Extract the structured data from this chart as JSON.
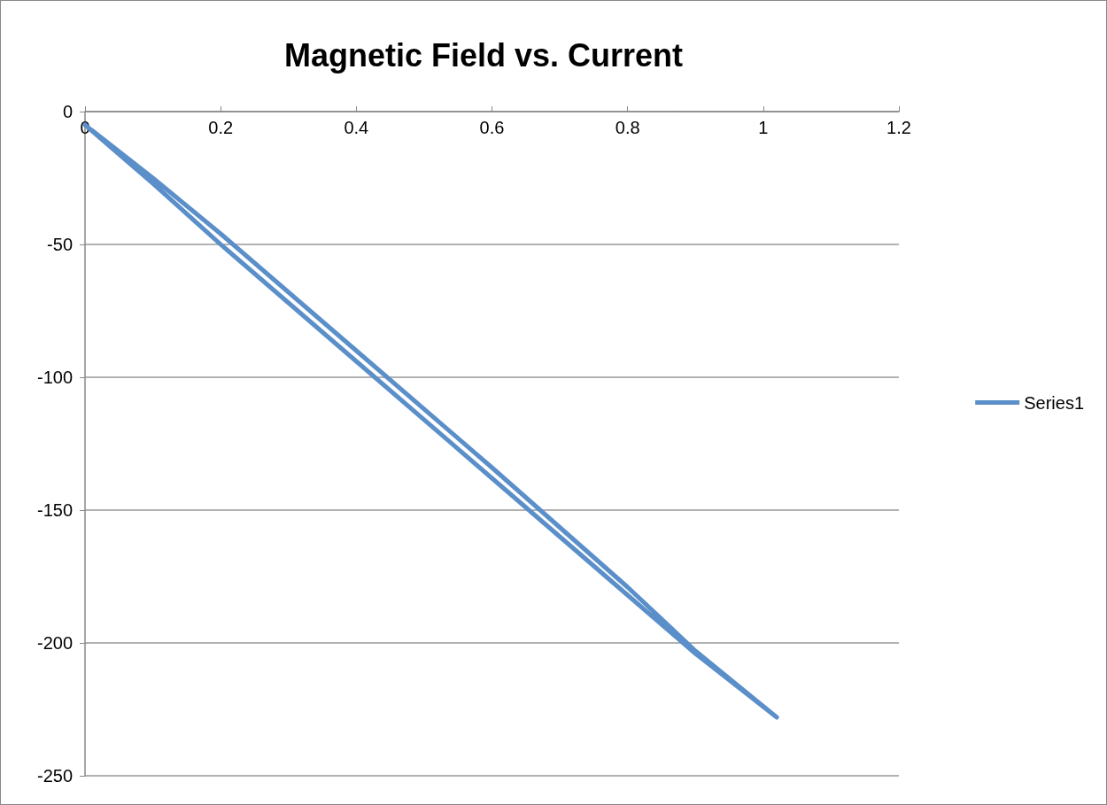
{
  "chart_data": {
    "type": "line",
    "title": "Magnetic Field vs. Current",
    "series": [
      {
        "name": "Series1",
        "color": "#5b8fc9",
        "x": [
          0,
          0.1,
          0.2,
          0.4,
          0.6,
          0.8,
          0.9,
          1.02,
          0.9,
          0.8,
          0.6,
          0.4,
          0.2,
          0.1,
          0.01
        ],
        "values": [
          -5,
          -27,
          -50,
          -94,
          -138,
          -182,
          -204,
          -228,
          -203,
          -179,
          -134,
          -90,
          -46,
          -25,
          -7
        ]
      }
    ],
    "xlim": [
      0,
      1.2
    ],
    "xticks": [
      0,
      0.2,
      0.4,
      0.6,
      0.8,
      1,
      1.2
    ],
    "ylim": [
      -250,
      0
    ],
    "yticks": [
      -250,
      -200,
      -150,
      -100,
      -50,
      0
    ],
    "grid": "y",
    "legend": "right",
    "marker": "none",
    "line_style": "solid"
  }
}
